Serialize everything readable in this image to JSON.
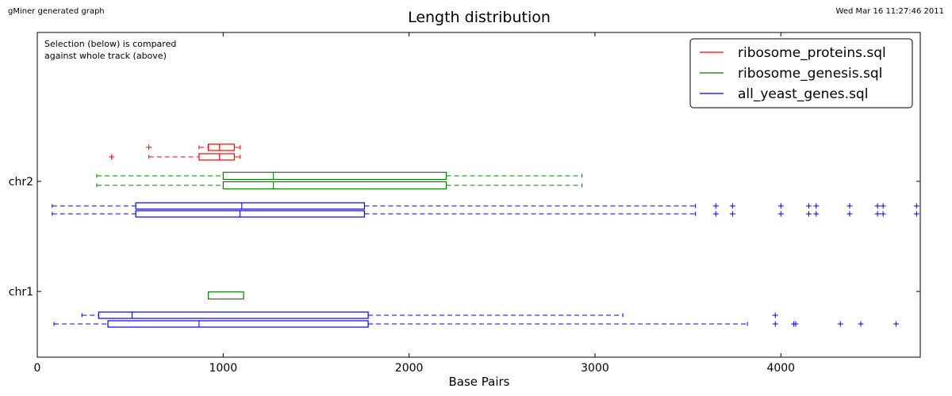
{
  "header": {
    "generator_note": "gMiner generated graph",
    "timestamp": "Wed Mar 16 11:27:46 2011"
  },
  "chart_data": {
    "type": "boxplot",
    "orientation": "horizontal",
    "title": "Length distribution",
    "xlabel": "Base Pairs",
    "xlim": [
      0,
      4750
    ],
    "xticks": [
      0,
      1000,
      2000,
      3000,
      4000
    ],
    "yticks": [
      "chr1",
      "chr2"
    ],
    "annotation": "Selection (below) is compared\nagainst whole track (above)",
    "legend": {
      "placement": "top-right",
      "entries": [
        {
          "name": "ribosome_proteins.sql",
          "color": "#ff0000"
        },
        {
          "name": "ribosome_genesis.sql",
          "color": "#008000"
        },
        {
          "name": "all_yeast_genes.sql",
          "color": "#0000ff"
        }
      ]
    },
    "boxes": [
      {
        "chromosome": "chr2",
        "series": "ribosome_proteins.sql",
        "subset": "whole track",
        "color": "#ff0000",
        "whisker_low": 870,
        "q1": 920,
        "median": 980,
        "q3": 1060,
        "whisker_high": 1090,
        "outliers": [
          600
        ]
      },
      {
        "chromosome": "chr2",
        "series": "ribosome_proteins.sql",
        "subset": "selection",
        "color": "#ff0000",
        "whisker_low": 600,
        "q1": 870,
        "median": 980,
        "q3": 1060,
        "whisker_high": 1090,
        "outliers": [
          400
        ]
      },
      {
        "chromosome": "chr2",
        "series": "ribosome_genesis.sql",
        "subset": "whole track",
        "color": "#008000",
        "whisker_low": 320,
        "q1": 1000,
        "median": 1270,
        "q3": 2200,
        "whisker_high": 2930,
        "outliers": []
      },
      {
        "chromosome": "chr2",
        "series": "ribosome_genesis.sql",
        "subset": "selection",
        "color": "#008000",
        "whisker_low": 320,
        "q1": 1000,
        "median": 1270,
        "q3": 2200,
        "whisker_high": 2930,
        "outliers": []
      },
      {
        "chromosome": "chr2",
        "series": "all_yeast_genes.sql",
        "subset": "whole track",
        "color": "#0000ff",
        "whisker_low": 80,
        "q1": 530,
        "median": 1100,
        "q3": 1760,
        "whisker_high": 3540,
        "outliers": [
          3650,
          3740,
          4000,
          4150,
          4190,
          4370,
          4520,
          4550,
          4730
        ]
      },
      {
        "chromosome": "chr2",
        "series": "all_yeast_genes.sql",
        "subset": "selection",
        "color": "#0000ff",
        "whisker_low": 80,
        "q1": 530,
        "median": 1090,
        "q3": 1760,
        "whisker_high": 3540,
        "outliers": [
          3650,
          3740,
          4000,
          4150,
          4190,
          4370,
          4520,
          4550,
          4730
        ]
      },
      {
        "chromosome": "chr1",
        "series": "ribosome_genesis.sql",
        "subset": "whole track",
        "color": "#008000",
        "whisker_low": 920,
        "q1": 920,
        "median": 920,
        "q3": 1110,
        "whisker_high": 1110,
        "outliers": []
      },
      {
        "chromosome": "chr1",
        "series": "all_yeast_genes.sql",
        "subset": "whole track",
        "color": "#0000ff",
        "whisker_low": 240,
        "q1": 330,
        "median": 510,
        "q3": 1780,
        "whisker_high": 3150,
        "outliers": [
          3970
        ]
      },
      {
        "chromosome": "chr1",
        "series": "all_yeast_genes.sql",
        "subset": "selection",
        "color": "#0000ff",
        "whisker_low": 90,
        "q1": 380,
        "median": 870,
        "q3": 1780,
        "whisker_high": 3820,
        "outliers": [
          3970,
          4070,
          4080,
          4320,
          4430,
          4620
        ]
      }
    ]
  }
}
